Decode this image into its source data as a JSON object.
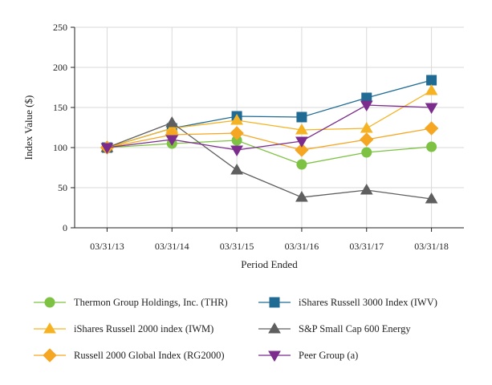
{
  "chart_data": {
    "type": "line",
    "title": "",
    "xlabel": "Period Ended",
    "ylabel": "Index Value ($)",
    "categories": [
      "03/31/13",
      "03/31/14",
      "03/31/15",
      "03/31/16",
      "03/31/17",
      "03/31/18"
    ],
    "ylim": [
      0,
      250
    ],
    "yticks": [
      0,
      50,
      100,
      150,
      200,
      250
    ],
    "grid": true,
    "legend_position": "bottom",
    "series": [
      {
        "name": "Thermon Group Holdings, Inc. (THR)",
        "color": "#7dc242",
        "marker": "circle",
        "values": [
          100,
          105,
          109,
          79,
          94,
          101
        ]
      },
      {
        "name": "iShares Russell 3000 Index (IWV)",
        "color": "#1f6b94",
        "marker": "square",
        "values": [
          100,
          124,
          139,
          138,
          162,
          184
        ]
      },
      {
        "name": "iShares Russell 2000 index (IWM)",
        "color": "#f5b324",
        "marker": "triangle-up",
        "values": [
          100,
          124,
          134,
          122,
          124,
          171
        ]
      },
      {
        "name": "S&P Small Cap 600 Energy",
        "color": "#5f5f5f",
        "marker": "triangle-up",
        "values": [
          100,
          131,
          72,
          38,
          47,
          36
        ]
      },
      {
        "name": "Russell 2000 Global Index (RG2000)",
        "color": "#f5a623",
        "marker": "diamond",
        "values": [
          100,
          116,
          118,
          97,
          110,
          124
        ]
      },
      {
        "name": "Peer Group (a)",
        "color": "#7b2c8c",
        "marker": "triangle-down",
        "values": [
          100,
          110,
          97,
          108,
          153,
          150
        ]
      }
    ]
  }
}
